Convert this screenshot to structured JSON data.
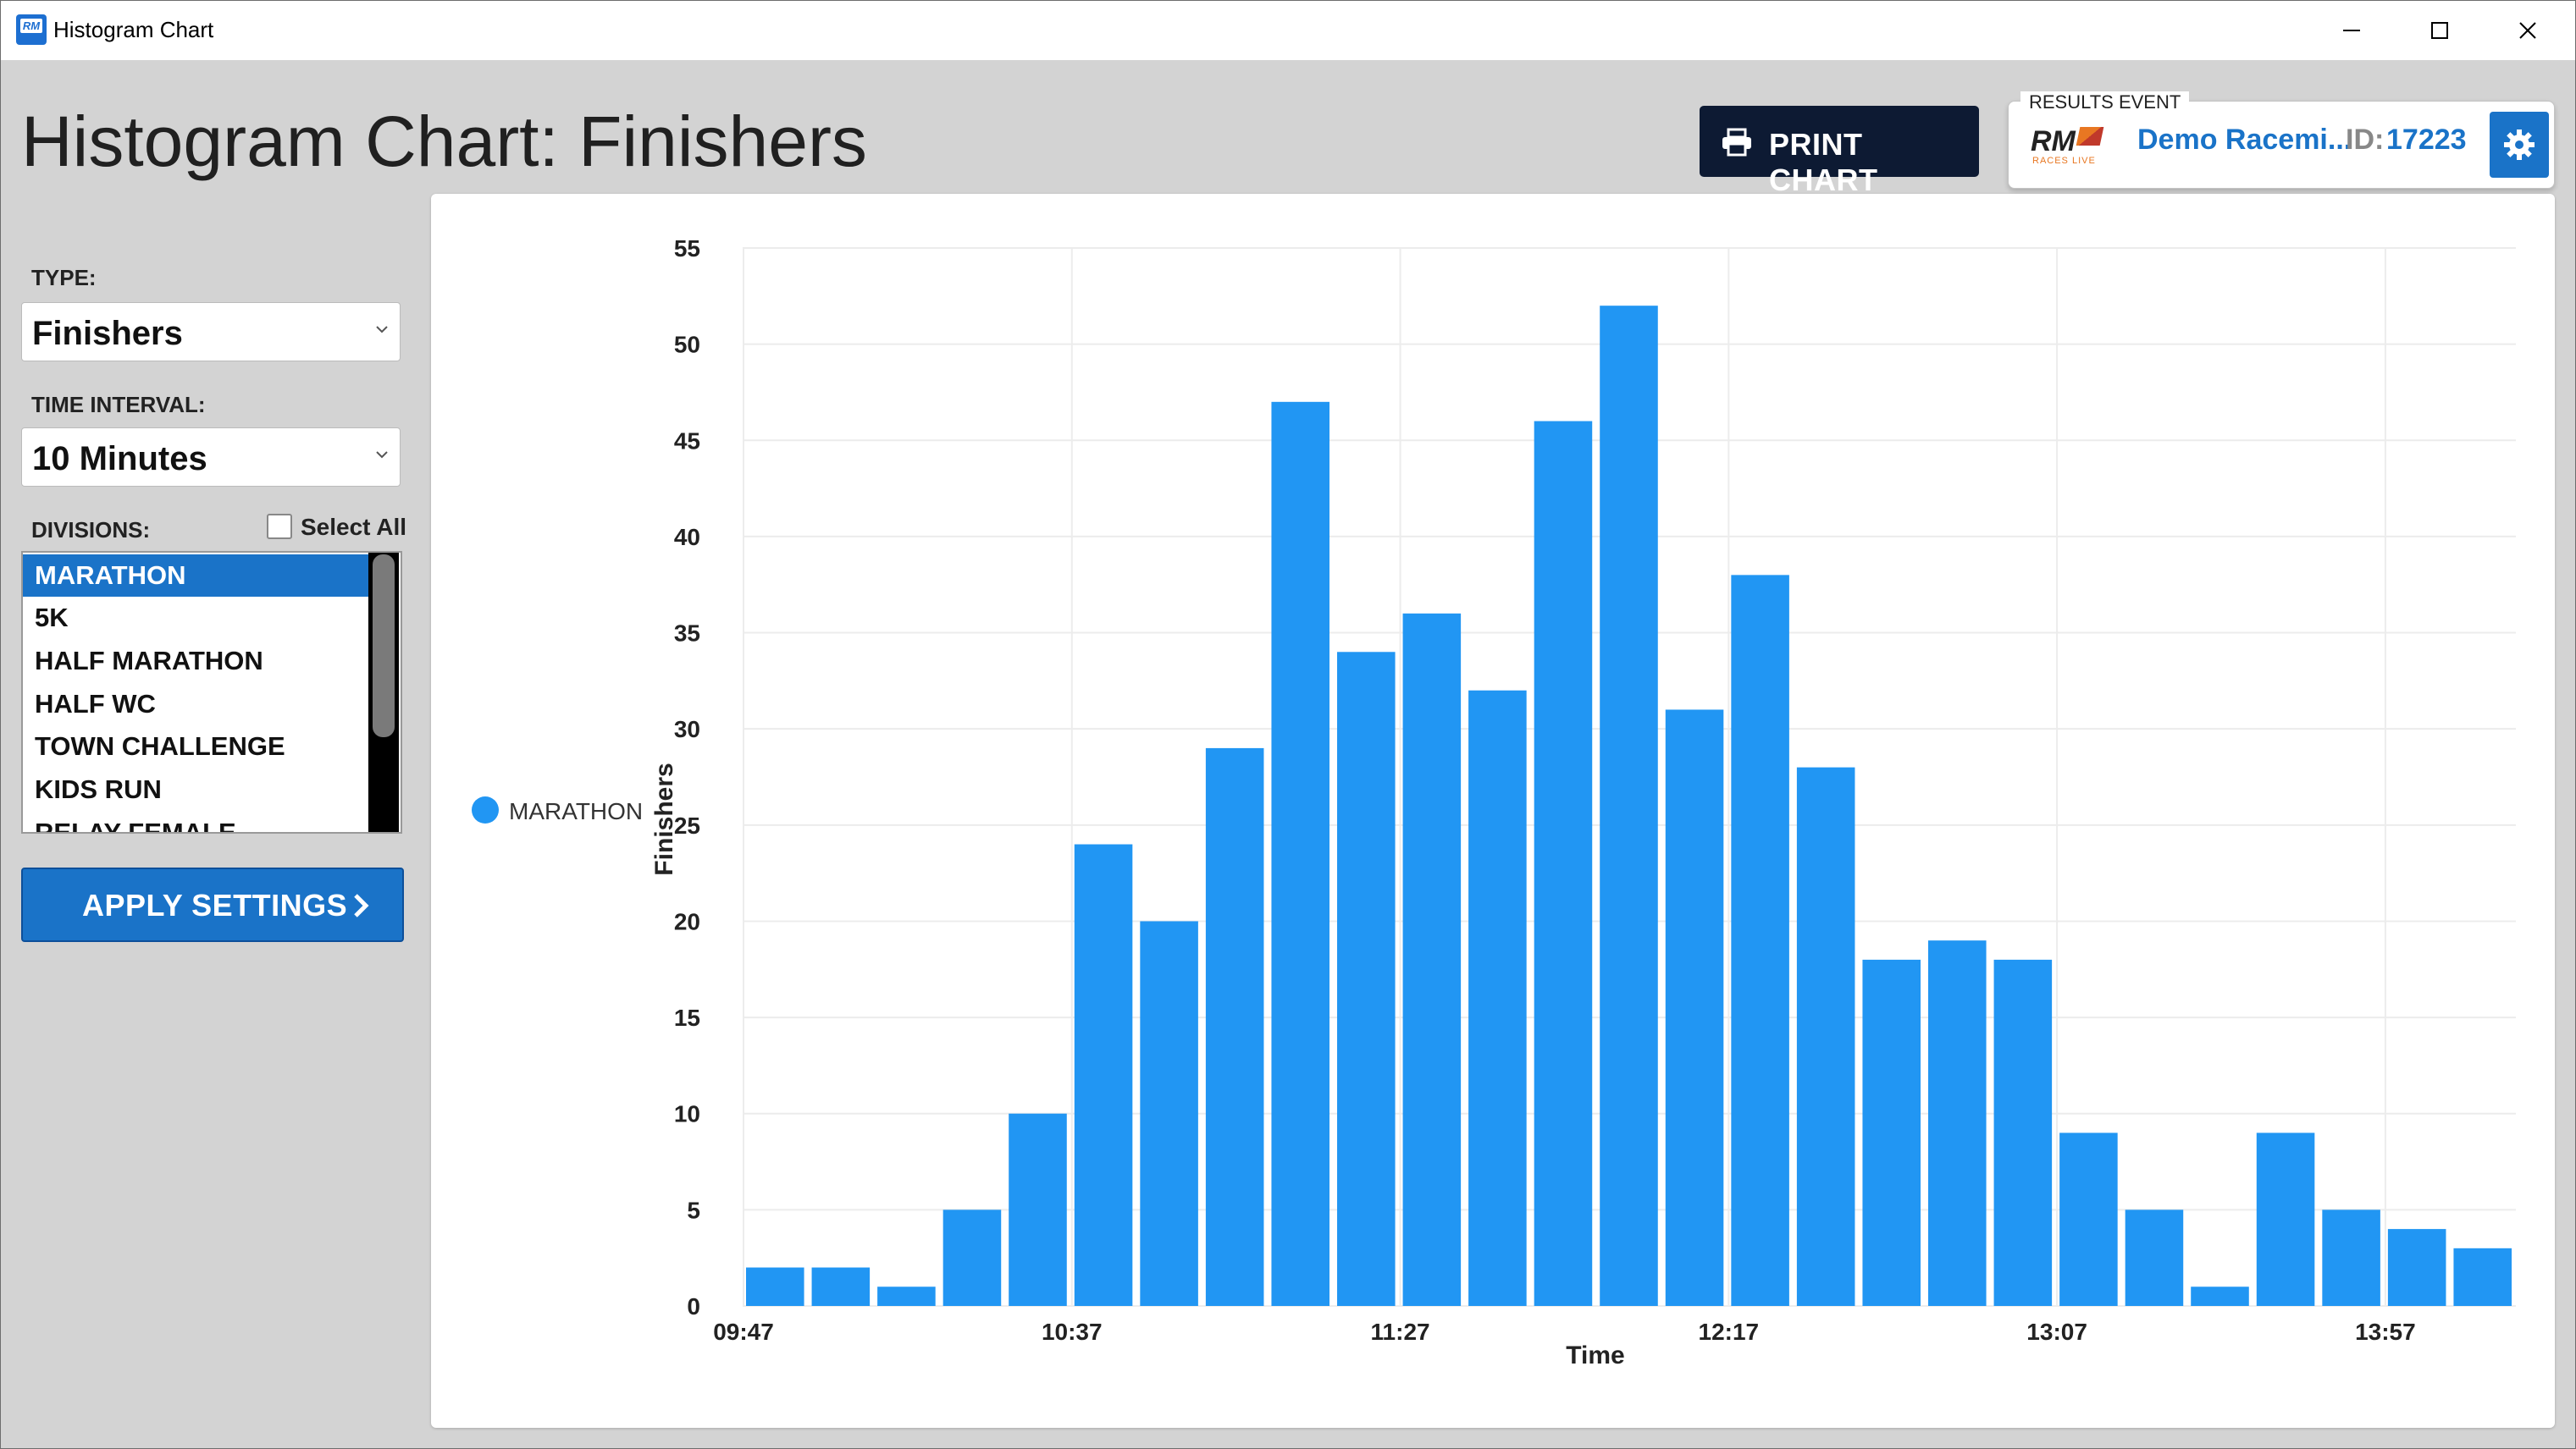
{
  "window": {
    "title": "Histogram Chart"
  },
  "page": {
    "title": "Histogram Chart: Finishers"
  },
  "toolbar": {
    "print_label": "PRINT CHART"
  },
  "event": {
    "section_label": "RESULTS EVENT",
    "logo_text": "RM",
    "logo_sub": "RACES LIVE",
    "name": "Demo Racemi...",
    "id_label": "ID:",
    "id": "17223"
  },
  "sidebar": {
    "type_label": "TYPE:",
    "type_value": "Finishers",
    "interval_label": "TIME INTERVAL:",
    "interval_value": "10 Minutes",
    "divisions_label": "DIVISIONS:",
    "select_all_label": "Select All",
    "divisions": [
      "MARATHON",
      "5K",
      "HALF MARATHON",
      "HALF WC",
      "TOWN CHALLENGE",
      "KIDS RUN",
      "RELAY FEMALE"
    ],
    "selected_division": "MARATHON",
    "apply_label": "APPLY SETTINGS"
  },
  "colors": {
    "accent": "#1a73c8",
    "bar": "#2196f3",
    "dark_button": "#0d1a33"
  },
  "chart_data": {
    "type": "bar",
    "title": "",
    "xlabel": "Time",
    "ylabel": "Finishers",
    "ylim": [
      0,
      55
    ],
    "y_ticks": [
      0,
      5,
      10,
      15,
      20,
      25,
      30,
      35,
      40,
      45,
      50,
      55
    ],
    "x_tick_labels": [
      "09:47",
      "10:37",
      "11:27",
      "12:17",
      "13:07",
      "13:57"
    ],
    "categories": [
      "09:47",
      "09:57",
      "10:07",
      "10:17",
      "10:27",
      "10:37",
      "10:47",
      "10:57",
      "11:07",
      "11:17",
      "11:27",
      "11:37",
      "11:47",
      "11:57",
      "12:07",
      "12:17",
      "12:27",
      "12:37",
      "12:47",
      "12:57",
      "13:07",
      "13:17",
      "13:27",
      "13:37",
      "13:47",
      "13:57",
      "14:07"
    ],
    "series": [
      {
        "name": "MARATHON",
        "values": [
          2,
          2,
          1,
          5,
          10,
          24,
          20,
          29,
          47,
          34,
          36,
          32,
          46,
          52,
          31,
          38,
          28,
          18,
          19,
          18,
          9,
          5,
          1,
          9,
          5,
          4,
          3
        ]
      }
    ],
    "legend_position": "left",
    "grid": true
  }
}
